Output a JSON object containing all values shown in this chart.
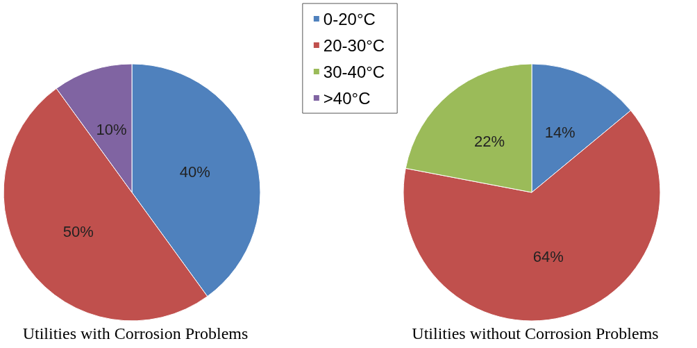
{
  "chart_data": {
    "type": "pie",
    "categories": [
      "0-20°C",
      "20-30°C",
      "30-40°C",
      ">40°C"
    ],
    "colors": [
      "#4f81bd",
      "#c0504d",
      "#9bbb59",
      "#8064a2"
    ],
    "legend": "top",
    "series": [
      {
        "name": "Utilities with Corrosion Problems",
        "values": [
          40,
          50,
          null,
          10
        ],
        "value_labels": [
          "40%",
          "50%",
          null,
          "10%"
        ]
      },
      {
        "name": "Utilities without Corrosion Problems",
        "values": [
          14,
          64,
          22,
          null
        ],
        "value_labels": [
          "14%",
          "64%",
          "22%",
          null
        ]
      }
    ]
  }
}
